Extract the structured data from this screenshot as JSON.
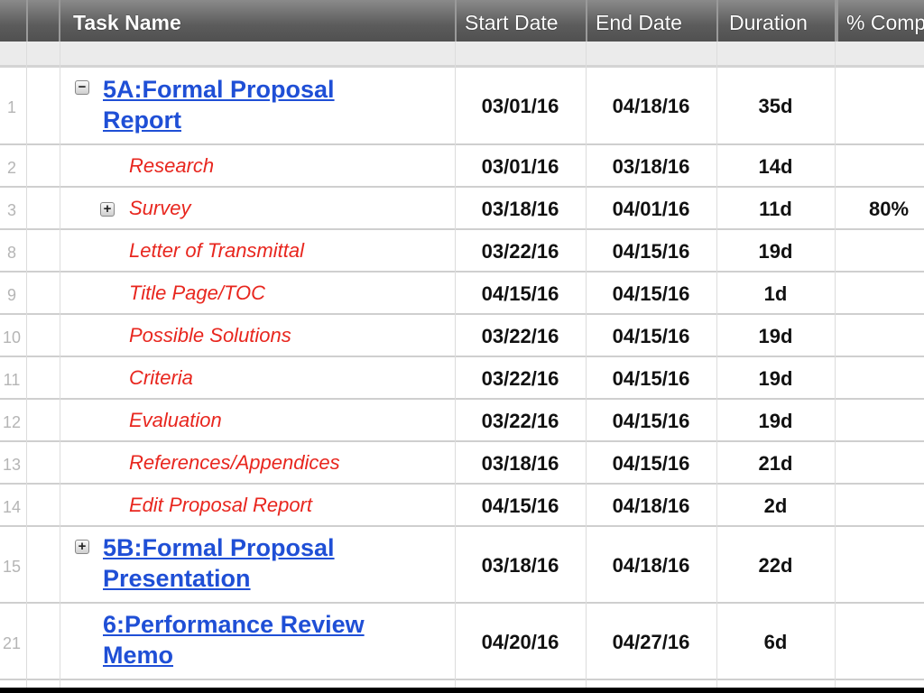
{
  "columns": {
    "task_name": "Task Name",
    "start_date": "Start Date",
    "end_date": "End Date",
    "duration": "Duration",
    "percent_complete": "% Comp"
  },
  "colors": {
    "parent_link": "#1f4fd6",
    "subtask": "#e8261e",
    "header": "#5c5c5c"
  },
  "rows": [
    {
      "num": "1",
      "name": "5A:Formal Proposal Report",
      "line1": "5A:Formal Proposal",
      "line2": "Report",
      "start": "03/01/16",
      "end": "04/18/16",
      "duration": "35d",
      "pct": "",
      "type": "parent",
      "toggle": "minus"
    },
    {
      "num": "2",
      "name": "Research",
      "start": "03/01/16",
      "end": "03/18/16",
      "duration": "14d",
      "pct": "",
      "type": "sub"
    },
    {
      "num": "3",
      "name": "Survey",
      "start": "03/18/16",
      "end": "04/01/16",
      "duration": "11d",
      "pct": "80%",
      "type": "sub",
      "toggle": "plus"
    },
    {
      "num": "8",
      "name": "Letter of Transmittal",
      "start": "03/22/16",
      "end": "04/15/16",
      "duration": "19d",
      "pct": "",
      "type": "sub"
    },
    {
      "num": "9",
      "name": "Title Page/TOC",
      "start": "04/15/16",
      "end": "04/15/16",
      "duration": "1d",
      "pct": "",
      "type": "sub"
    },
    {
      "num": "10",
      "name": "Possible Solutions",
      "start": "03/22/16",
      "end": "04/15/16",
      "duration": "19d",
      "pct": "",
      "type": "sub"
    },
    {
      "num": "11",
      "name": "Criteria",
      "start": "03/22/16",
      "end": "04/15/16",
      "duration": "19d",
      "pct": "",
      "type": "sub"
    },
    {
      "num": "12",
      "name": "Evaluation",
      "start": "03/22/16",
      "end": "04/15/16",
      "duration": "19d",
      "pct": "",
      "type": "sub"
    },
    {
      "num": "13",
      "name": "References/Appendices",
      "start": "03/18/16",
      "end": "04/15/16",
      "duration": "21d",
      "pct": "",
      "type": "sub"
    },
    {
      "num": "14",
      "name": "Edit Proposal Report",
      "start": "04/15/16",
      "end": "04/18/16",
      "duration": "2d",
      "pct": "",
      "type": "sub"
    },
    {
      "num": "15",
      "name": "5B:Formal Proposal Presentation",
      "line1": "5B:Formal Proposal",
      "line2": "Presentation",
      "start": "03/18/16",
      "end": "04/18/16",
      "duration": "22d",
      "pct": "",
      "type": "parent",
      "toggle": "plus"
    },
    {
      "num": "21",
      "name": "6:Performance Review Memo",
      "line1": "6:Performance Review",
      "line2": "Memo",
      "start": "04/20/16",
      "end": "04/27/16",
      "duration": "6d",
      "pct": "",
      "type": "parent"
    }
  ]
}
